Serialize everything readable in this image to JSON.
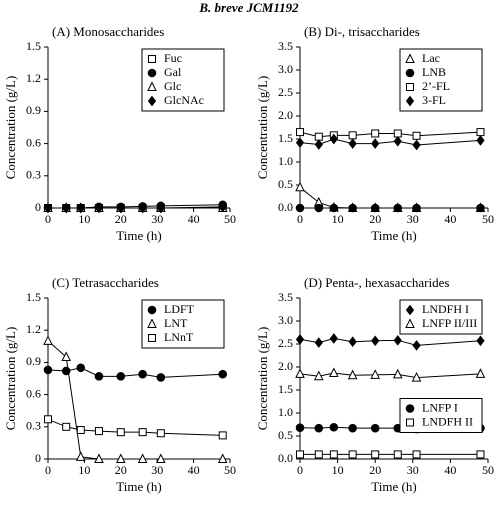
{
  "title": "B. breve JCM1192",
  "chart_data": [
    {
      "type": "line",
      "title": "(A) Monosaccharides",
      "x_label": "Time (h)",
      "y_label": "Concentration (g/L)",
      "x": [
        0,
        5,
        9,
        14,
        20,
        26,
        31,
        48
      ],
      "xlim": [
        0,
        50
      ],
      "xticks": [
        0,
        10,
        20,
        30,
        40,
        50
      ],
      "ylim": [
        0,
        1.5
      ],
      "yticks": [
        0,
        0.3,
        0.6,
        0.9,
        1.2,
        1.5
      ],
      "series": [
        {
          "name": "Fuc",
          "color": "#000000",
          "marker": "open-square",
          "legend_loc": "upper right",
          "values": [
            0,
            0,
            0,
            0,
            0,
            0,
            0,
            0
          ]
        },
        {
          "name": "Gal",
          "color": "#000000",
          "marker": "filled-circle",
          "legend_loc": "upper right",
          "values": [
            0,
            0,
            0,
            0.01,
            0.01,
            0.015,
            0.02,
            0.03
          ]
        },
        {
          "name": "Glc",
          "color": "#000000",
          "marker": "open-triangle",
          "legend_loc": "upper right",
          "values": [
            0,
            0,
            0,
            0,
            0,
            0,
            0,
            0
          ]
        },
        {
          "name": "GlcNAc",
          "color": "#000000",
          "marker": "filled-diamond",
          "legend_loc": "upper right",
          "values": [
            0,
            0,
            0,
            0,
            0,
            0,
            0,
            0.01
          ]
        }
      ]
    },
    {
      "type": "line",
      "title": "(B) Di-, trisaccharides",
      "x_label": "Time (h)",
      "y_label": "Concentration (g/L)",
      "x": [
        0,
        5,
        9,
        14,
        20,
        26,
        31,
        48
      ],
      "xlim": [
        0,
        50
      ],
      "xticks": [
        0,
        10,
        20,
        30,
        40,
        50
      ],
      "ylim": [
        0,
        3.5
      ],
      "yticks": [
        {
          "value": 0,
          "label": "0.0"
        },
        0.5,
        {
          "value": 1,
          "label": "1.0"
        },
        1.5,
        {
          "value": 2,
          "label": "2.0"
        },
        2.5,
        {
          "value": 3,
          "label": "3.0"
        },
        3.5
      ],
      "series": [
        {
          "name": "Lac",
          "color": "#000000",
          "marker": "open-triangle",
          "legend_loc": "upper right",
          "values": [
            0.45,
            0.12,
            0.01,
            0,
            0,
            0,
            0,
            0
          ]
        },
        {
          "name": "LNB",
          "color": "#000000",
          "marker": "filled-circle",
          "legend_loc": "upper right",
          "values": [
            0,
            0,
            0,
            0,
            0,
            0,
            0,
            0
          ]
        },
        {
          "name": "2’-FL",
          "color": "#000000",
          "marker": "open-square",
          "legend_loc": "upper right",
          "values": [
            1.65,
            1.55,
            1.58,
            1.58,
            1.62,
            1.62,
            1.57,
            1.65
          ]
        },
        {
          "name": "3-FL",
          "color": "#000000",
          "marker": "filled-diamond",
          "legend_loc": "upper right",
          "values": [
            1.42,
            1.38,
            1.5,
            1.4,
            1.4,
            1.45,
            1.37,
            1.47
          ]
        }
      ]
    },
    {
      "type": "line",
      "title": "(C) Tetrasaccharides",
      "x_label": "Time (h)",
      "y_label": "Concentration (g/L)",
      "x": [
        0,
        5,
        9,
        14,
        20,
        26,
        31,
        48
      ],
      "xlim": [
        0,
        50
      ],
      "xticks": [
        0,
        10,
        20,
        30,
        40,
        50
      ],
      "ylim": [
        0,
        1.5
      ],
      "yticks": [
        0,
        0.3,
        0.6,
        0.9,
        1.2,
        1.5
      ],
      "series": [
        {
          "name": "LDFT",
          "color": "#000000",
          "marker": "filled-circle",
          "legend_loc": "upper right",
          "values": [
            0.83,
            0.82,
            0.85,
            0.77,
            0.77,
            0.79,
            0.76,
            0.79
          ]
        },
        {
          "name": "LNT",
          "color": "#000000",
          "marker": "open-triangle",
          "legend_loc": "upper right",
          "values": [
            1.1,
            0.95,
            0.02,
            0,
            0,
            0,
            0,
            0
          ]
        },
        {
          "name": "LNnT",
          "color": "#000000",
          "marker": "open-square",
          "legend_loc": "upper right",
          "values": [
            0.37,
            0.3,
            0.27,
            0.26,
            0.25,
            0.25,
            0.24,
            0.22
          ]
        }
      ]
    },
    {
      "type": "line",
      "title": "(D) Penta-, hexasaccharides",
      "x_label": "Time (h)",
      "y_label": "Concentration (g/L)",
      "x": [
        0,
        5,
        9,
        14,
        20,
        26,
        31,
        48
      ],
      "xlim": [
        0,
        50
      ],
      "xticks": [
        0,
        10,
        20,
        30,
        40,
        50
      ],
      "ylim": [
        0,
        3.5
      ],
      "yticks": [
        {
          "value": 0,
          "label": "0.0"
        },
        0.5,
        {
          "value": 1,
          "label": "1.0"
        },
        1.5,
        {
          "value": 2,
          "label": "2.0"
        },
        2.5,
        {
          "value": 3,
          "label": "3.0"
        },
        3.5
      ],
      "series": [
        {
          "name": "LNDFH I",
          "color": "#000000",
          "marker": "filled-diamond",
          "legend_loc": "upper right",
          "values": [
            2.6,
            2.53,
            2.62,
            2.55,
            2.57,
            2.58,
            2.47,
            2.57
          ]
        },
        {
          "name": "LNFP II/III",
          "color": "#000000",
          "marker": "open-triangle",
          "legend_loc": "upper right",
          "values": [
            1.85,
            1.8,
            1.87,
            1.82,
            1.83,
            1.84,
            1.77,
            1.85
          ]
        },
        {
          "name": "LNFP I",
          "color": "#000000",
          "marker": "filled-circle",
          "legend_loc": "center right",
          "values": [
            0.68,
            0.67,
            0.69,
            0.67,
            0.67,
            0.67,
            0.65,
            0.67
          ]
        },
        {
          "name": "LNDFH II",
          "color": "#000000",
          "marker": "open-square",
          "legend_loc": "center right",
          "values": [
            0.1,
            0.1,
            0.1,
            0.1,
            0.1,
            0.1,
            0.1,
            0.1
          ]
        }
      ]
    }
  ]
}
